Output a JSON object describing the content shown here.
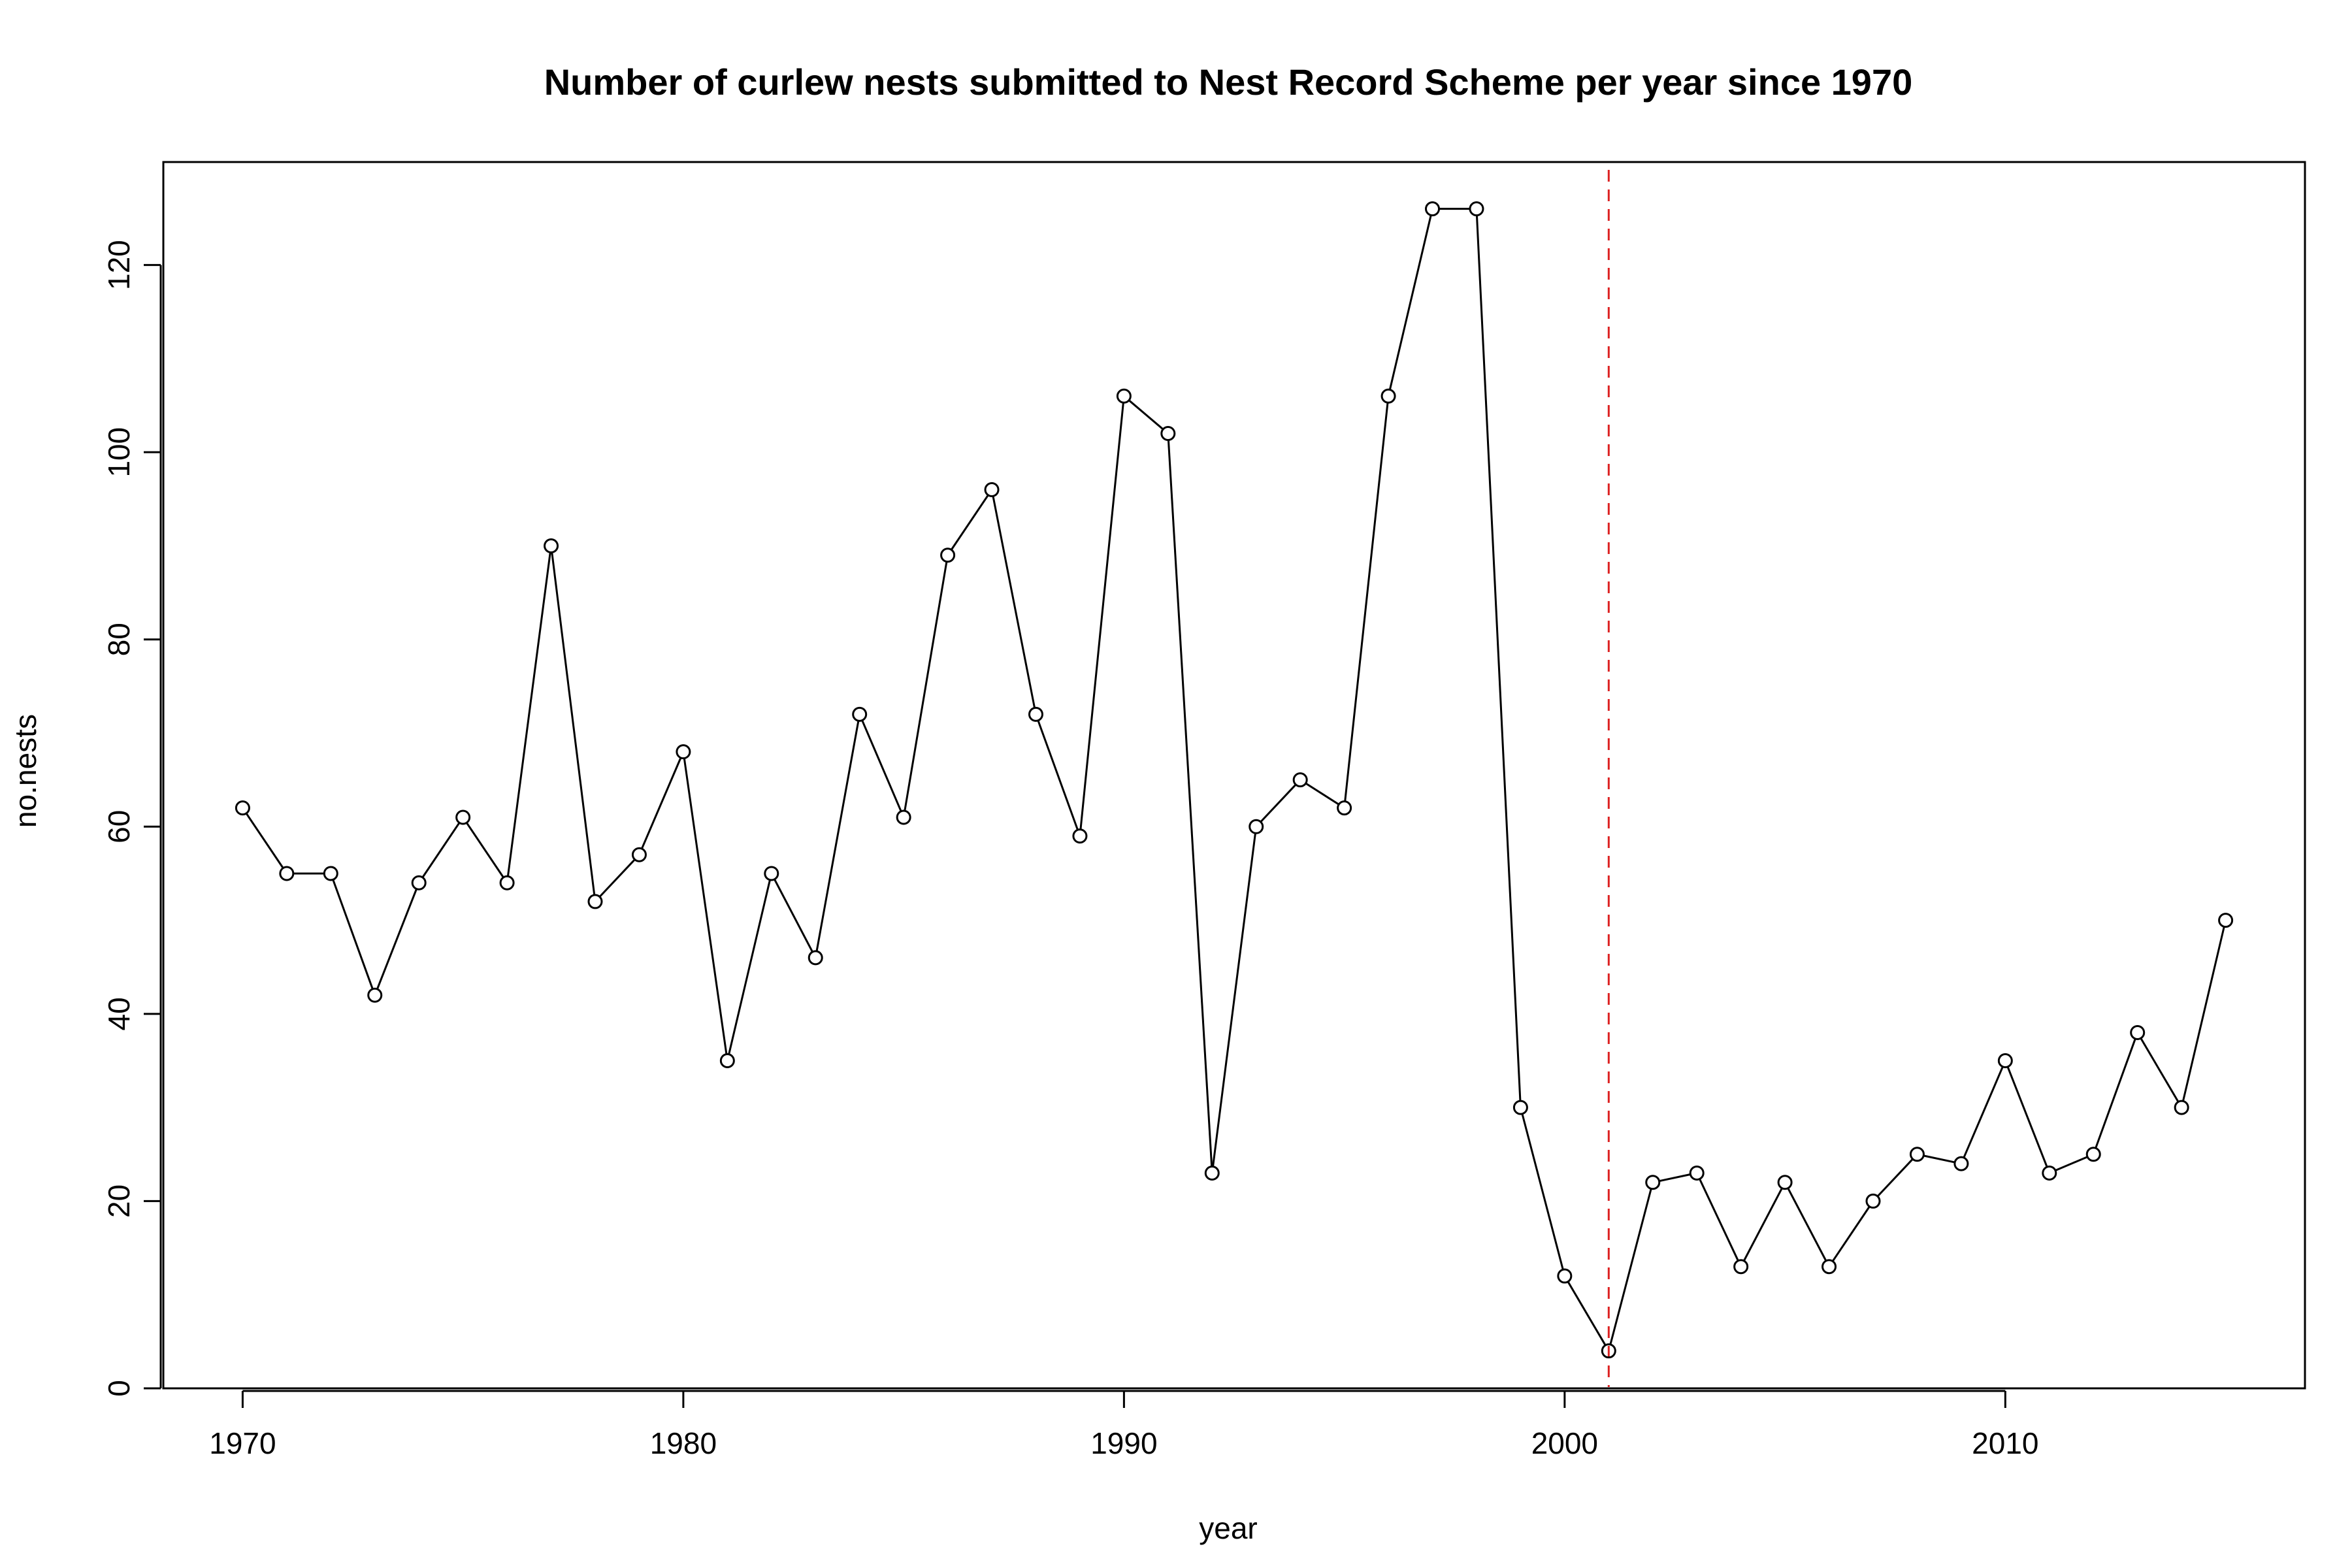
{
  "chart_data": {
    "type": "line",
    "title": "Number of curlew nests submitted to Nest Record Scheme per year since 1970",
    "xlabel": "year",
    "ylabel": "no.nests",
    "xlim": [
      1968.2,
      2016.8
    ],
    "ylim": [
      0,
      131
    ],
    "x_ticks": [
      1970,
      1980,
      1990,
      2000,
      2010
    ],
    "y_ticks": [
      0,
      20,
      40,
      60,
      80,
      100,
      120
    ],
    "grid": false,
    "legend": "none",
    "series": [
      {
        "x": [
          1970,
          1971,
          1972,
          1973,
          1974,
          1975,
          1976,
          1977,
          1978,
          1979,
          1980,
          1981,
          1982,
          1983,
          1984,
          1985,
          1986,
          1987,
          1988,
          1989,
          1990,
          1991,
          1992,
          1993,
          1994,
          1995,
          1996,
          1997,
          1998,
          1999,
          2000,
          2001,
          2002,
          2003,
          2004,
          2005,
          2006,
          2007,
          2008,
          2009,
          2010,
          2011,
          2012,
          2013,
          2014,
          2015
        ],
        "values": [
          62,
          55,
          55,
          42,
          54,
          61,
          54,
          90,
          52,
          57,
          68,
          35,
          55,
          46,
          72,
          61,
          89,
          96,
          72,
          59,
          106,
          102,
          23,
          60,
          65,
          62,
          106,
          126,
          126,
          30,
          12,
          4,
          22,
          23,
          13,
          22,
          13,
          20,
          25,
          24,
          35,
          23,
          25,
          38,
          30,
          50
        ],
        "color": "#000000",
        "marker": "open-circle"
      }
    ],
    "annotations": [
      {
        "type": "vertical-line",
        "x": 2001,
        "color": "#dd2222",
        "style": "dashed"
      }
    ]
  }
}
